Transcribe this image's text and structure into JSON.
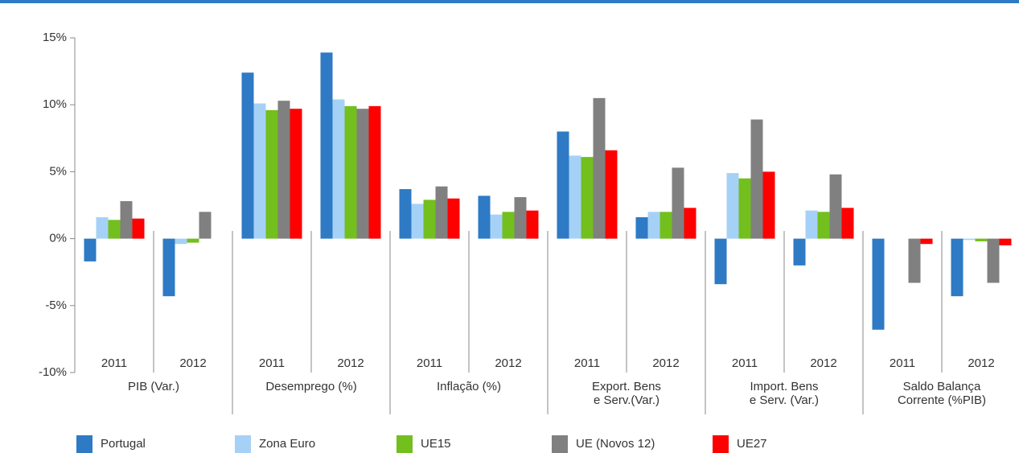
{
  "chart_data": {
    "type": "bar",
    "categories": [
      "2011",
      "2012",
      "2011",
      "2012",
      "2011",
      "2012",
      "2011",
      "2012",
      "2011",
      "2012",
      "2011",
      "2012"
    ],
    "groups": [
      [
        "PIB (Var.)"
      ],
      [
        "Desemprego (%)"
      ],
      [
        "Inflação (%)"
      ],
      [
        "Export. Bens",
        "e Serv.(Var.)"
      ],
      [
        "Import. Bens",
        "e Serv. (Var.)"
      ],
      [
        "Saldo Balança",
        "Corrente (%PIB)"
      ]
    ],
    "series": [
      {
        "name": "Portugal",
        "color": "#2e7ac5",
        "values": [
          -1.7,
          -4.3,
          12.4,
          13.9,
          3.7,
          3.2,
          8.0,
          1.6,
          -3.4,
          -2.0,
          -6.8,
          -4.3
        ]
      },
      {
        "name": "Zona Euro",
        "color": "#a6d1f7",
        "values": [
          1.6,
          -0.4,
          10.1,
          10.4,
          2.6,
          1.8,
          6.2,
          2.0,
          4.9,
          2.1,
          null,
          -0.1
        ]
      },
      {
        "name": "UE15",
        "color": "#72bf1e",
        "values": [
          1.4,
          -0.3,
          9.6,
          9.9,
          2.9,
          2.0,
          6.1,
          2.0,
          4.5,
          2.0,
          null,
          -0.2
        ]
      },
      {
        "name": "UE (Novos 12)",
        "color": "#808080",
        "values": [
          2.8,
          2.0,
          10.3,
          9.7,
          3.9,
          3.1,
          10.5,
          5.3,
          8.9,
          4.8,
          -3.3,
          -3.3
        ]
      },
      {
        "name": "UE27",
        "color": "#ff0000",
        "values": [
          1.5,
          null,
          9.7,
          9.9,
          3.0,
          2.1,
          6.6,
          2.3,
          5.0,
          2.3,
          -0.4,
          -0.5
        ]
      }
    ],
    "ylim": [
      -10,
      15
    ],
    "yticks": [
      {
        "value": -10,
        "label": "-10%"
      },
      {
        "value": -5,
        "label": "-5%"
      },
      {
        "value": 0,
        "label": "0%"
      },
      {
        "value": 5,
        "label": "5%"
      },
      {
        "value": 10,
        "label": "10%"
      },
      {
        "value": 15,
        "label": "15%"
      }
    ]
  }
}
